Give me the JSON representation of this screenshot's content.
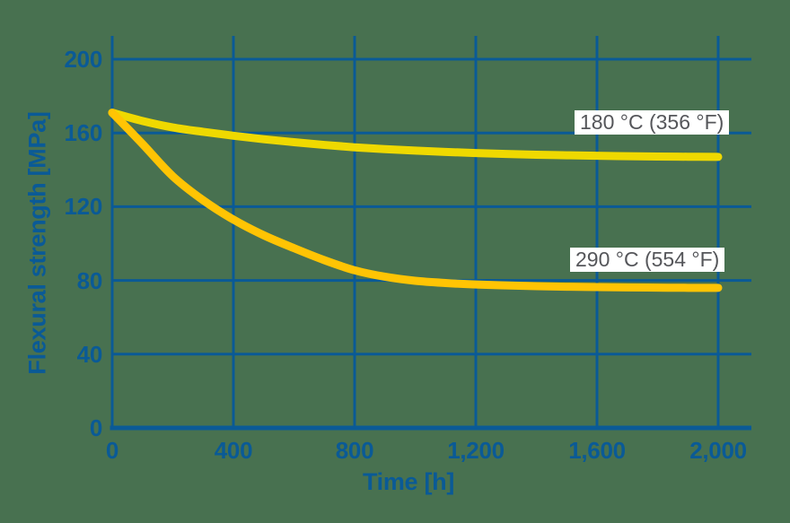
{
  "styles": {
    "background": "#487150",
    "axis_color": "#0A5A96",
    "curve_label_text_color": "#55565A",
    "curve_label_bg": "#FFFFFF"
  },
  "chart_data": {
    "type": "line",
    "title": "",
    "xlabel": "Time [h]",
    "ylabel": "Flexural strength [MPa]",
    "xlim": [
      0,
      2000
    ],
    "ylim": [
      0,
      200
    ],
    "grid": true,
    "legend_position": "inline-labels-right",
    "x_ticks": [
      {
        "value": 0,
        "label": "0"
      },
      {
        "value": 400,
        "label": "400"
      },
      {
        "value": 800,
        "label": "800"
      },
      {
        "value": 1200,
        "label": "1,200"
      },
      {
        "value": 1600,
        "label": "1,600"
      },
      {
        "value": 2000,
        "label": "2,000"
      }
    ],
    "y_ticks": [
      {
        "value": 0,
        "label": "0"
      },
      {
        "value": 40,
        "label": "40"
      },
      {
        "value": 80,
        "label": "80"
      },
      {
        "value": 120,
        "label": "120"
      },
      {
        "value": 160,
        "label": "160"
      },
      {
        "value": 200,
        "label": "200"
      }
    ],
    "series": [
      {
        "name": "180 °C (356 °F)",
        "color": "#EFD900",
        "points": [
          [
            0,
            171
          ],
          [
            100,
            166.5
          ],
          [
            200,
            163
          ],
          [
            300,
            160.6
          ],
          [
            400,
            158.5
          ],
          [
            500,
            156.6
          ],
          [
            600,
            155
          ],
          [
            700,
            153.5
          ],
          [
            800,
            152.2
          ],
          [
            900,
            151.2
          ],
          [
            1000,
            150.4
          ],
          [
            1100,
            149.7
          ],
          [
            1200,
            149.1
          ],
          [
            1300,
            148.6
          ],
          [
            1400,
            148.2
          ],
          [
            1500,
            147.9
          ],
          [
            1600,
            147.6
          ],
          [
            1700,
            147.4
          ],
          [
            1800,
            147.2
          ],
          [
            1900,
            147.1
          ],
          [
            2000,
            147
          ]
        ]
      },
      {
        "name": "290 °C (554 °F)",
        "color": "#FFC404",
        "points": [
          [
            0,
            171
          ],
          [
            100,
            154
          ],
          [
            200,
            136.5
          ],
          [
            300,
            123.5
          ],
          [
            400,
            113
          ],
          [
            500,
            104.5
          ],
          [
            600,
            97.5
          ],
          [
            700,
            91
          ],
          [
            800,
            85.5
          ],
          [
            900,
            82
          ],
          [
            1000,
            79.8
          ],
          [
            1100,
            78.6
          ],
          [
            1200,
            77.8
          ],
          [
            1300,
            77.3
          ],
          [
            1400,
            76.9
          ],
          [
            1500,
            76.6
          ],
          [
            1600,
            76.4
          ],
          [
            1700,
            76.2
          ],
          [
            1800,
            76.1
          ],
          [
            1900,
            76
          ],
          [
            2000,
            76
          ]
        ]
      }
    ]
  }
}
